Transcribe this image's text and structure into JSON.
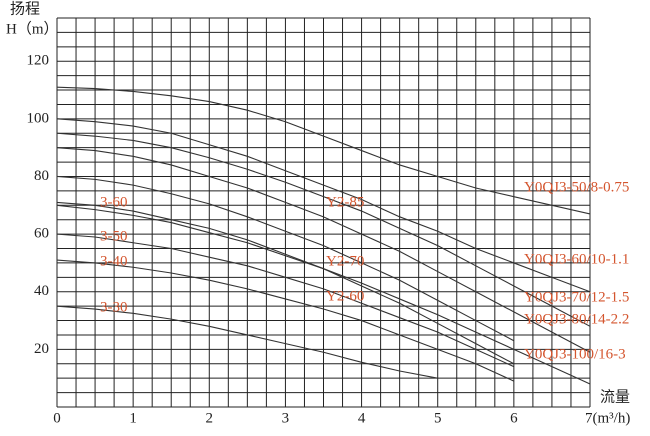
{
  "chart_data": {
    "type": "line",
    "y_title": "扬程",
    "y_label": "H（m）",
    "x_title": "流量",
    "xlim": [
      0,
      7
    ],
    "ylim": [
      0,
      135
    ],
    "xticks": [
      0,
      1,
      2,
      3,
      4,
      5,
      6,
      {
        "value": 7,
        "label": "7(m³/h)"
      }
    ],
    "yticks": [
      20,
      40,
      60,
      80,
      100,
      120
    ],
    "x_grid": [
      0,
      0.25,
      0.5,
      0.75,
      1,
      1.25,
      1.5,
      1.75,
      2,
      2.25,
      2.5,
      2.75,
      3,
      3.25,
      3.5,
      3.75,
      4,
      4.25,
      4.5,
      4.75,
      5,
      5.25,
      5.5,
      5.75,
      6,
      6.25,
      6.5,
      6.75,
      7
    ],
    "y_grid": [
      0,
      5,
      10,
      15,
      20,
      25,
      30,
      35,
      40,
      45,
      50,
      55,
      60,
      65,
      70,
      75,
      80,
      85,
      90,
      95,
      100,
      105,
      110,
      115,
      120,
      125,
      130,
      135
    ],
    "color": "#333333",
    "annotation_color": "#d4552e",
    "x": [
      0,
      0.5,
      1,
      1.5,
      2,
      2.5,
      3,
      3.5,
      4,
      4.5,
      5,
      5.5,
      6,
      6.5,
      7
    ],
    "series": [
      {
        "values": [
          111,
          110.5,
          109.5,
          108,
          106,
          103,
          99,
          94,
          89,
          84,
          80,
          76,
          73,
          70,
          67
        ]
      },
      {
        "values": [
          100,
          99,
          97.5,
          95,
          91,
          87,
          82,
          77,
          72,
          66,
          61,
          55,
          50,
          45,
          40
        ]
      },
      {
        "values": [
          95,
          94,
          92.5,
          90,
          86.5,
          82.5,
          78,
          73,
          68,
          62,
          56,
          49,
          42,
          35,
          28
        ]
      },
      {
        "values": [
          90,
          89,
          87,
          84,
          80,
          76,
          71,
          66,
          60,
          54,
          47,
          40,
          33,
          26,
          19
        ]
      },
      {
        "values": [
          80,
          79,
          77,
          74,
          70.5,
          66,
          61,
          56,
          50,
          44,
          37,
          30,
          23,
          null,
          null
        ]
      },
      {
        "values": [
          71,
          70,
          68,
          65,
          62,
          58,
          53,
          48,
          42,
          36,
          29,
          22,
          15,
          null,
          null
        ]
      },
      {
        "values": [
          70,
          68.5,
          66.5,
          64,
          60.5,
          57,
          52.5,
          48,
          43,
          37.5,
          32,
          26,
          20,
          14,
          8
        ]
      },
      {
        "values": [
          60,
          59,
          57,
          55,
          52,
          49,
          45,
          41,
          36,
          31,
          26,
          20,
          14,
          null,
          null
        ]
      },
      {
        "values": [
          51,
          50,
          48.5,
          46.5,
          44,
          41,
          37.5,
          34,
          30,
          25,
          20,
          15,
          9,
          null,
          null
        ]
      },
      {
        "values": [
          35,
          34,
          32.5,
          30.5,
          28,
          25,
          22,
          19,
          15.5,
          12.5,
          10,
          null,
          null,
          null,
          null
        ]
      }
    ],
    "annotations": [
      "3-60",
      "3-50",
      "3-40",
      "3-30",
      "Y2-85",
      "Y2-70",
      "Y2-60",
      "Y0QJ3-50/8-0.75",
      "Y0QJ3-60/10-1.1",
      "Y0QJ3-70/12-1.5",
      "Y0QJ3-80/14-2.2",
      "Y0QJ3-100/16-3"
    ]
  }
}
